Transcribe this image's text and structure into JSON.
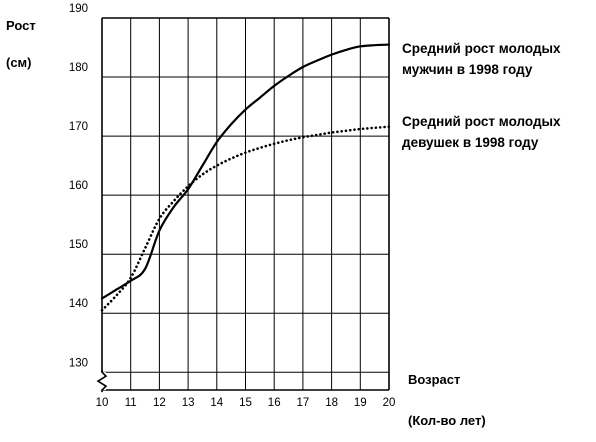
{
  "chart_data": {
    "type": "line",
    "ylabel": "Рост",
    "yunit": "(см)",
    "xlabel": "Возраст",
    "xunit": "(Кол-во лет)",
    "xlim": [
      10,
      20
    ],
    "ylim": [
      127,
      190
    ],
    "x_ticks": [
      10,
      11,
      12,
      13,
      14,
      15,
      16,
      17,
      18,
      19,
      20
    ],
    "y_ticks": [
      130,
      140,
      150,
      160,
      170,
      180,
      190
    ],
    "grid": true,
    "axis_break": true,
    "series": [
      {
        "name": "Средний рост молодых мужчин в 1998 году",
        "name_lines": [
          "Средний рост молодых",
          "мужчин в 1998 году"
        ],
        "style": "solid",
        "color": "#000000",
        "x": [
          10,
          10.5,
          11,
          11.5,
          12,
          12.5,
          13,
          13.5,
          14,
          14.5,
          15,
          15.5,
          16,
          16.5,
          17,
          17.5,
          18,
          18.5,
          19,
          19.5,
          20
        ],
        "values": [
          142.5,
          144,
          145.5,
          147.5,
          154,
          158,
          161,
          165,
          169,
          172,
          174.5,
          176.5,
          178.5,
          180.2,
          181.7,
          182.8,
          183.8,
          184.6,
          185.2,
          185.4,
          185.5
        ]
      },
      {
        "name": "Средний рост молодых девушек в 1998 году",
        "name_lines": [
          "Средний рост молодых",
          "девушек в 1998 году"
        ],
        "style": "dotted",
        "color": "#000000",
        "x": [
          10,
          10.5,
          11,
          11.5,
          12,
          12.5,
          13,
          13.5,
          14,
          14.5,
          15,
          15.5,
          16,
          16.5,
          17,
          17.5,
          18,
          18.5,
          19,
          19.5,
          20
        ],
        "values": [
          140.5,
          143,
          146,
          151,
          156,
          159,
          161.5,
          163.5,
          165,
          166.2,
          167.2,
          168,
          168.7,
          169.3,
          169.8,
          170.2,
          170.6,
          170.9,
          171.2,
          171.4,
          171.6
        ]
      }
    ]
  }
}
